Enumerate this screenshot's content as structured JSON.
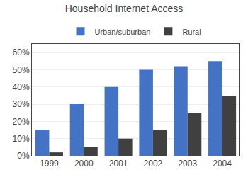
{
  "chart_data": {
    "type": "bar",
    "title": "Household Internet Access",
    "categories": [
      "1999",
      "2000",
      "2001",
      "2002",
      "2003",
      "2004"
    ],
    "series": [
      {
        "name": "Urban/suburban",
        "color": "#4472C4",
        "values": [
          15,
          30,
          40,
          50,
          52,
          55
        ]
      },
      {
        "name": "Rural",
        "color": "#404040",
        "values": [
          2,
          5,
          10,
          15,
          25,
          35
        ]
      }
    ],
    "ylim": [
      0,
      65
    ],
    "yticks": [
      {
        "value": 0,
        "label": "0%"
      },
      {
        "value": 10,
        "label": "10%"
      },
      {
        "value": 20,
        "label": "20%"
      },
      {
        "value": 30,
        "label": "30%"
      },
      {
        "value": 40,
        "label": "40%"
      },
      {
        "value": 50,
        "label": "50%"
      },
      {
        "value": 60,
        "label": "60%"
      }
    ],
    "grid": true,
    "legend": "top"
  }
}
